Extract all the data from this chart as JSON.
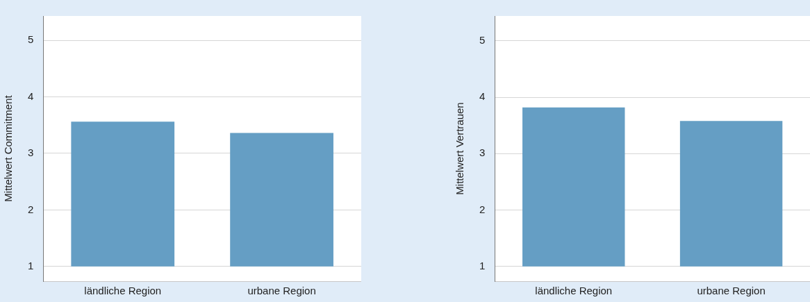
{
  "chart_data": [
    {
      "type": "bar",
      "categories": [
        "ländliche Region",
        "urbane Region"
      ],
      "base": [
        1,
        1
      ],
      "values": [
        2.56,
        2.36
      ],
      "color": "#659ec4",
      "ylabel": "Mittelwert Commitment",
      "ylim": [
        0.74,
        5.43
      ],
      "yticks": [
        1,
        2,
        3,
        4,
        5
      ],
      "grid": "y",
      "legend": false
    },
    {
      "type": "bar",
      "categories": [
        "ländliche Region",
        "urbane Region"
      ],
      "base": [
        1,
        1
      ],
      "values": [
        2.82,
        2.58
      ],
      "color": "#659ec4",
      "ylabel": "Mittelwert Vertrauen",
      "ylim": [
        0.74,
        5.44
      ],
      "yticks": [
        1,
        2,
        3,
        4,
        5
      ],
      "grid": "y",
      "legend": false
    }
  ]
}
